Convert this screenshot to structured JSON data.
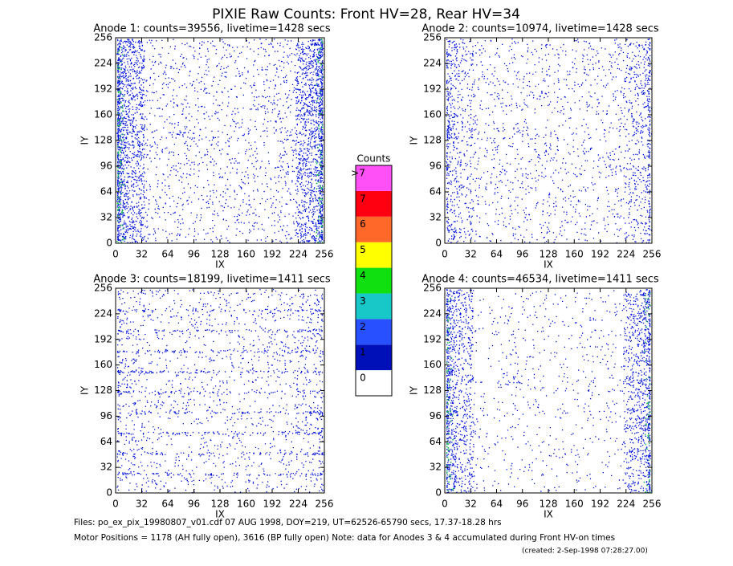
{
  "title": "PIXIE Raw Counts:  Front HV=28, Rear HV=34",
  "chart_data": [
    {
      "type": "heatmap",
      "title": "Anode 1: counts=39556, livetime=1428 secs",
      "xlabel": "IX",
      "ylabel": "IY",
      "xlim": [
        0,
        256
      ],
      "ylim": [
        0,
        256
      ],
      "xticks": [
        0,
        32,
        64,
        96,
        128,
        160,
        192,
        224,
        256
      ],
      "yticks": [
        0,
        32,
        64,
        96,
        128,
        160,
        192,
        224,
        256
      ]
    },
    {
      "type": "heatmap",
      "title": "Anode 2: counts=10974, livetime=1428 secs",
      "xlabel": "IX",
      "ylabel": "IY",
      "xlim": [
        0,
        256
      ],
      "ylim": [
        0,
        256
      ],
      "xticks": [
        0,
        32,
        64,
        96,
        128,
        160,
        192,
        224,
        256
      ],
      "yticks": [
        0,
        32,
        64,
        96,
        128,
        160,
        192,
        224,
        256
      ]
    },
    {
      "type": "heatmap",
      "title": "Anode 3: counts=18199, livetime=1411 secs",
      "xlabel": "IX",
      "ylabel": "IY",
      "xlim": [
        0,
        256
      ],
      "ylim": [
        0,
        256
      ],
      "xticks": [
        0,
        32,
        64,
        96,
        128,
        160,
        192,
        224,
        256
      ],
      "yticks": [
        0,
        32,
        64,
        96,
        128,
        160,
        192,
        224,
        256
      ]
    },
    {
      "type": "heatmap",
      "title": "Anode 4: counts=46534, livetime=1411 secs",
      "xlabel": "IX",
      "ylabel": "IY",
      "xlim": [
        0,
        256
      ],
      "ylim": [
        0,
        256
      ],
      "xticks": [
        0,
        32,
        64,
        96,
        128,
        160,
        192,
        224,
        256
      ],
      "yticks": [
        0,
        32,
        64,
        96,
        128,
        160,
        192,
        224,
        256
      ]
    }
  ],
  "colorbar": {
    "title": "Counts",
    "levels": [
      0,
      1,
      2,
      3,
      4,
      5,
      6,
      7
    ],
    "top_label": ">7",
    "colors": [
      "#ffffff",
      "#0010b8",
      "#2850ff",
      "#18c8c8",
      "#10e010",
      "#ffff00",
      "#ff6828",
      "#ff0010",
      "#ff50f8"
    ]
  },
  "footer": [
    "Files: po_ex_pix_19980807_v01.cdf     07 AUG 1998, DOY=219, UT=62526-65790 secs, 17.37-18.28 hrs",
    "Motor Positions = 1178 (AH fully open), 3616 (BP fully open)    Note: data for Anodes 3 & 4 accumulated during Front HV-on times",
    "(created:  2-Sep-1998 07:28:27.00)"
  ]
}
